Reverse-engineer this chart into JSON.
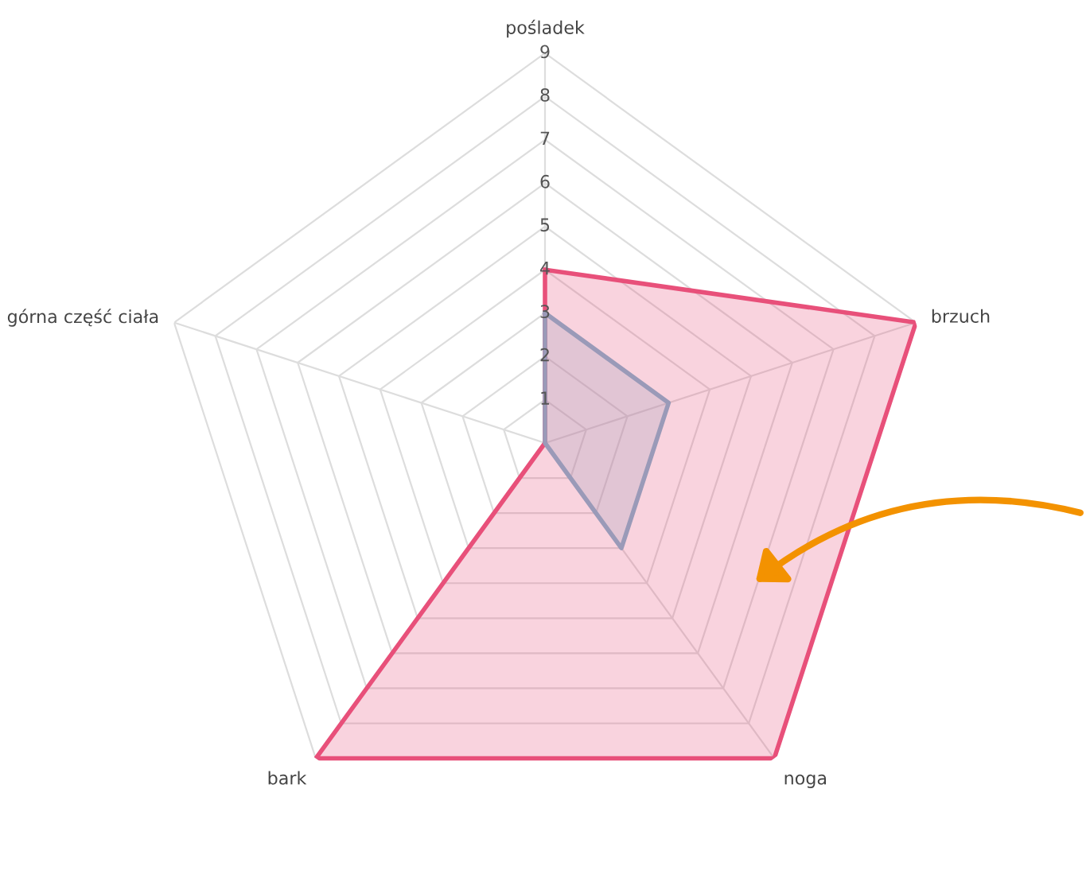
{
  "chart_data": {
    "type": "radar",
    "categories": [
      "pośladek",
      "brzuch",
      "noga",
      "bark",
      "górna część ciała"
    ],
    "ylim": [
      0,
      9
    ],
    "yticks": [
      1,
      2,
      3,
      4,
      5,
      6,
      7,
      8,
      9
    ],
    "grid": true,
    "series": [
      {
        "color": "#e8507a",
        "values": [
          4,
          9,
          9,
          9,
          0
        ]
      },
      {
        "color": "#9a9ab8",
        "values": [
          3,
          3,
          3,
          0,
          0
        ]
      }
    ]
  }
}
